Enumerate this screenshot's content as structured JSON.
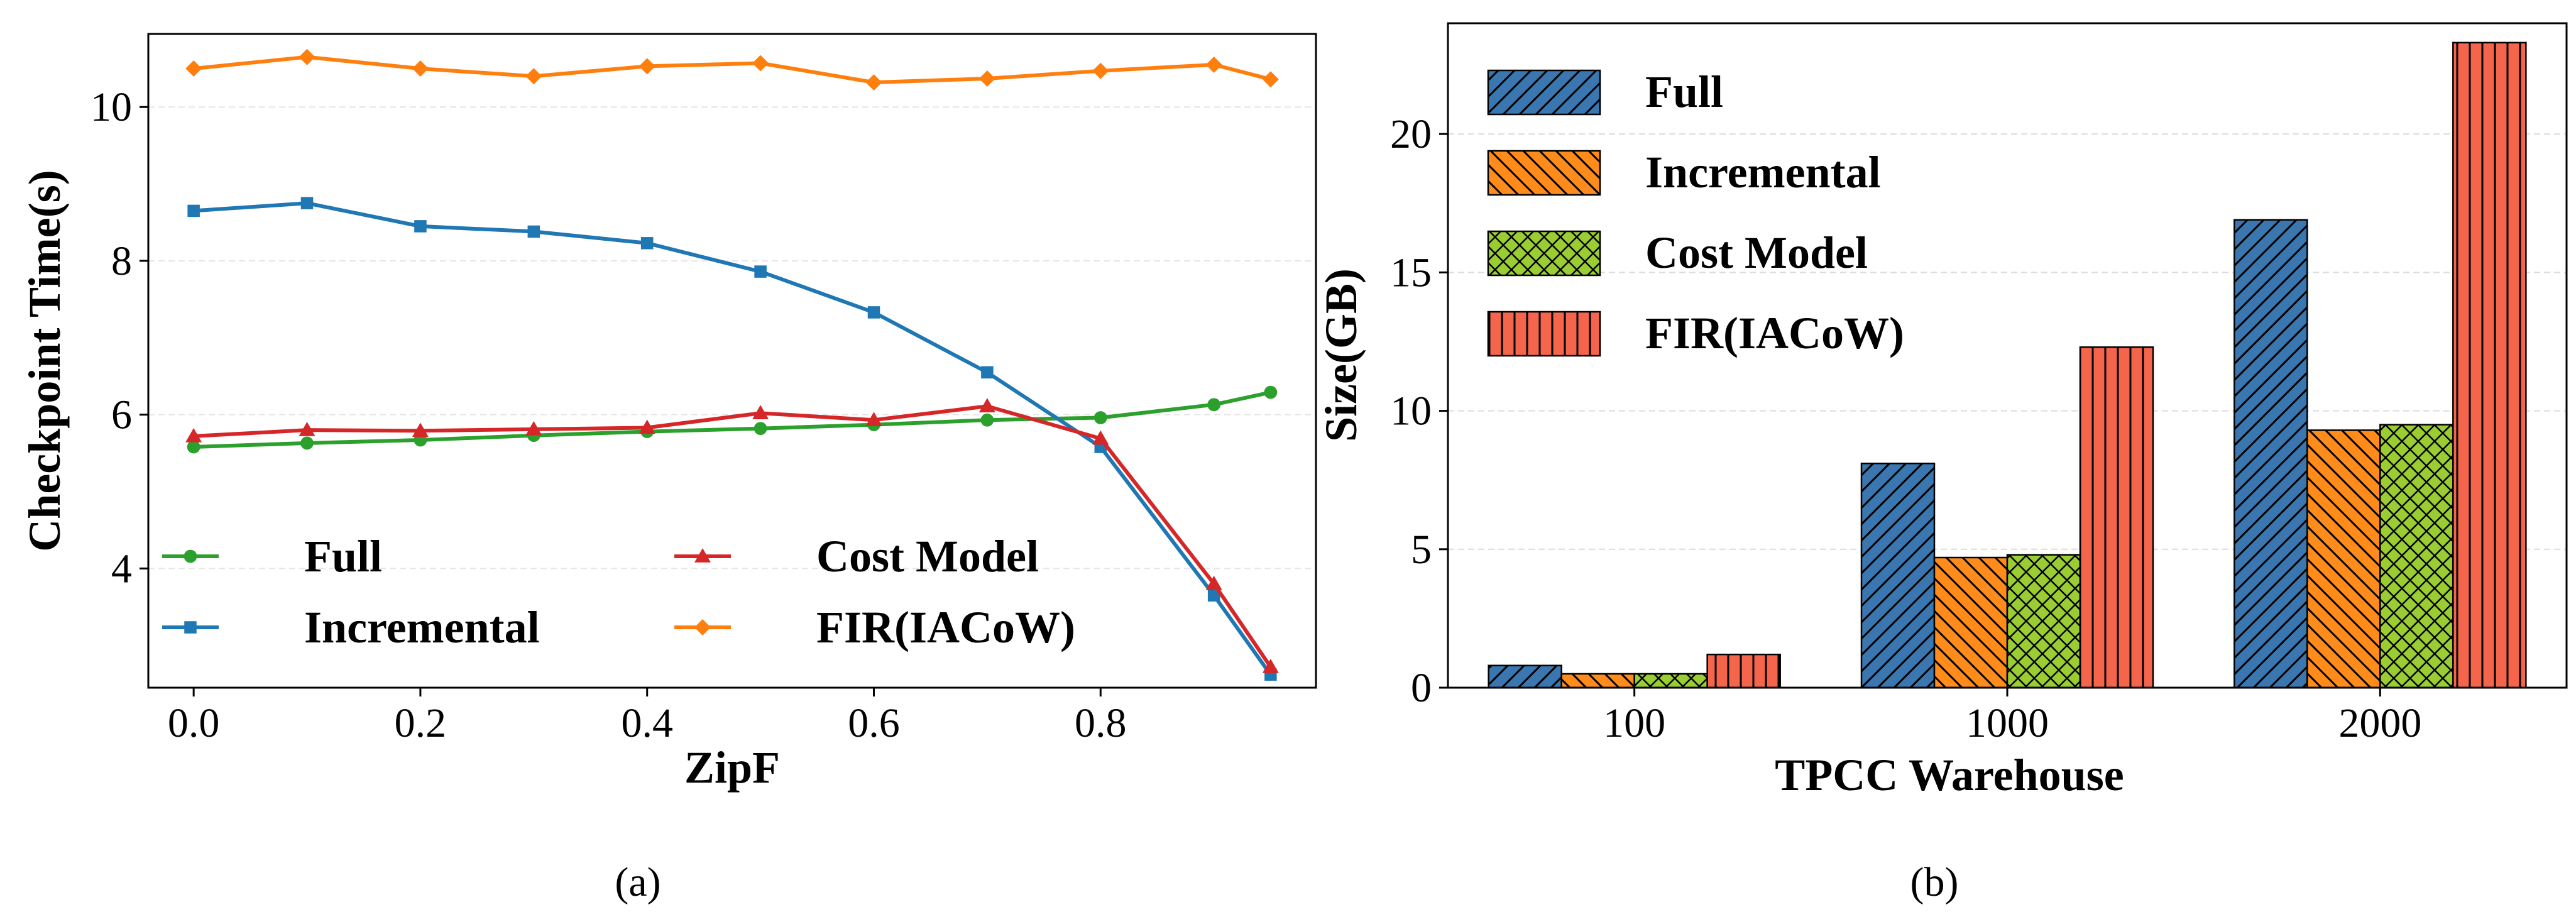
{
  "colors": {
    "full": "#2ca02c",
    "incremental": "#1f77b4",
    "cost_model": "#d62728",
    "fir": "#ff7f0e",
    "bar_full": "#3a76af",
    "bar_incremental": "#ff8c1a",
    "bar_cost_model": "#9acd32",
    "bar_fir": "#f4654b"
  },
  "chart_data": [
    {
      "type": "line",
      "caption": "(a)",
      "title": "",
      "xlabel": "ZipF",
      "ylabel": "Checkpoint Time(s)",
      "xlim": [
        -0.04,
        0.99
      ],
      "ylim": [
        2.45,
        10.95
      ],
      "xticks": [
        0.0,
        0.2,
        0.4,
        0.6,
        0.8
      ],
      "xtick_labels": [
        "0.0",
        "0.2",
        "0.4",
        "0.6",
        "0.8"
      ],
      "yticks": [
        4,
        6,
        8,
        10
      ],
      "ytick_labels": [
        "4",
        "6",
        "8",
        "10"
      ],
      "grid": "horizontal",
      "legend_position": "lower-left, two columns",
      "x": [
        0.0,
        0.1,
        0.2,
        0.3,
        0.4,
        0.5,
        0.6,
        0.7,
        0.8,
        0.9,
        0.95
      ],
      "series": [
        {
          "name": "Full",
          "color_key": "full",
          "marker": "circle",
          "values": [
            5.58,
            5.63,
            5.67,
            5.73,
            5.78,
            5.82,
            5.87,
            5.93,
            5.96,
            6.13,
            6.29
          ]
        },
        {
          "name": "Incremental",
          "color_key": "incremental",
          "marker": "square",
          "values": [
            8.65,
            8.75,
            8.45,
            8.38,
            8.23,
            7.86,
            7.33,
            6.55,
            5.58,
            3.65,
            2.62
          ]
        },
        {
          "name": "Cost Model",
          "color_key": "cost_model",
          "marker": "triangle",
          "values": [
            5.72,
            5.8,
            5.79,
            5.81,
            5.83,
            6.02,
            5.93,
            6.11,
            5.69,
            3.8,
            2.72
          ]
        },
        {
          "name": "FIR(IACoW)",
          "color_key": "fir",
          "marker": "diamond",
          "values": [
            10.5,
            10.65,
            10.5,
            10.4,
            10.53,
            10.57,
            10.32,
            10.37,
            10.47,
            10.55,
            10.36
          ]
        }
      ]
    },
    {
      "type": "bar",
      "caption": "(b)",
      "title": "",
      "xlabel": "TPCC Warehouse",
      "ylabel": "Size(GB)",
      "categories": [
        "100",
        "1000",
        "2000"
      ],
      "ylim": [
        0,
        24
      ],
      "yticks": [
        0,
        5,
        10,
        15,
        20
      ],
      "ytick_labels": [
        "0",
        "5",
        "10",
        "15",
        "20"
      ],
      "grid": "horizontal",
      "legend_position": "upper-left",
      "series": [
        {
          "name": "Full",
          "color_key": "bar_full",
          "hatch": "diagonal",
          "values": [
            0.8,
            8.1,
            16.9
          ]
        },
        {
          "name": "Incremental",
          "color_key": "bar_incremental",
          "hatch": "back-diagonal",
          "values": [
            0.5,
            4.7,
            9.3
          ]
        },
        {
          "name": "Cost Model",
          "color_key": "bar_cost_model",
          "hatch": "crosshatch",
          "values": [
            0.5,
            4.8,
            9.5
          ]
        },
        {
          "name": "FIR(IACoW)",
          "color_key": "bar_fir",
          "hatch": "vertical",
          "values": [
            1.2,
            12.3,
            23.3
          ]
        }
      ]
    }
  ]
}
